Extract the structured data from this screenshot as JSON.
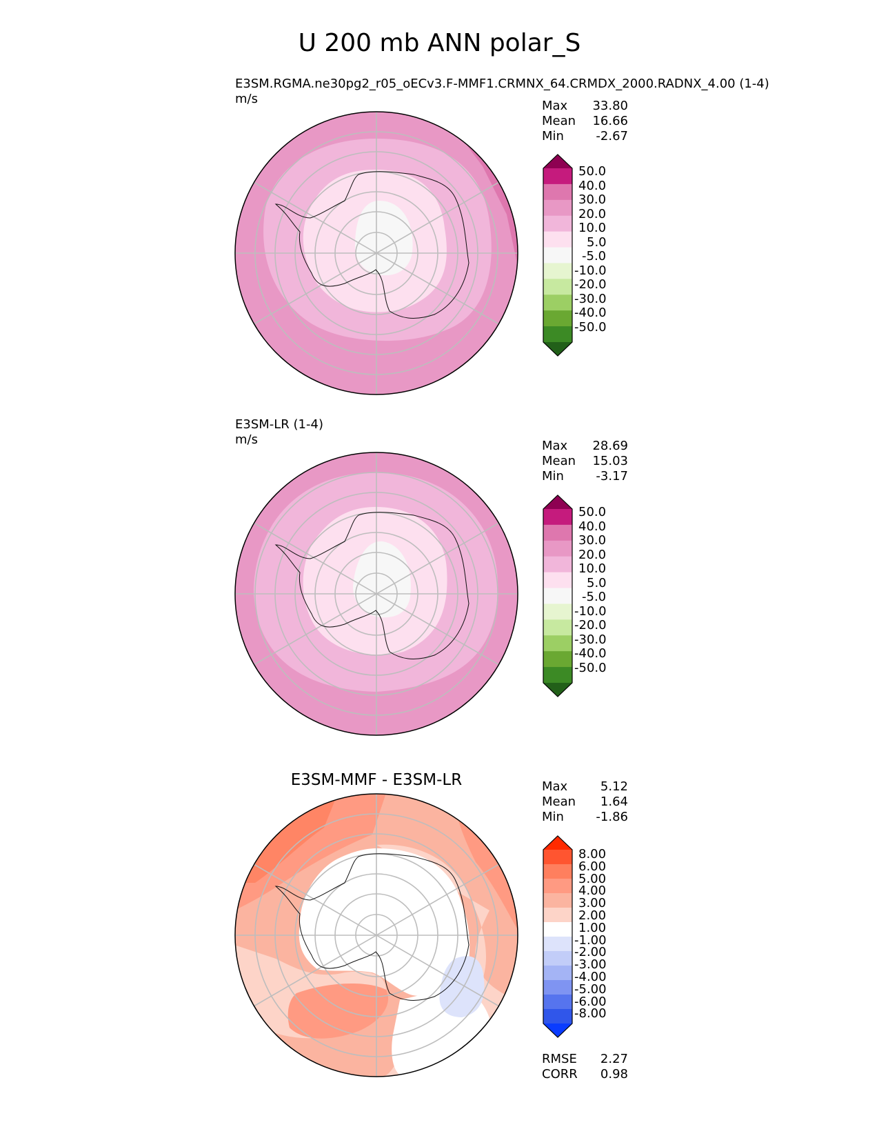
{
  "title": "U 200 mb ANN polar_S",
  "panels": [
    {
      "id": "test",
      "title_line1": "E3SM.RGMA.ne30pg2_r05_oECv3.F-MMF1.CRMNX_64.CRMDX_2000.RADNX_4.00 (1-4)",
      "title_line2": "m/s",
      "stats": {
        "max_label": "Max",
        "max": "33.80",
        "mean_label": "Mean",
        "mean": "16.66",
        "min_label": "Min",
        "min": "-2.67"
      }
    },
    {
      "id": "ref",
      "title_line1": "E3SM-LR (1-4)",
      "title_line2": "m/s",
      "stats": {
        "max_label": "Max",
        "max": "28.69",
        "mean_label": "Mean",
        "mean": "15.03",
        "min_label": "Min",
        "min": "-3.17"
      }
    },
    {
      "id": "diff",
      "title_line1": "E3SM-MMF - E3SM-LR",
      "stats": {
        "max_label": "Max",
        "max": "5.12",
        "mean_label": "Mean",
        "mean": "1.64",
        "min_label": "Min",
        "min": "-1.86"
      },
      "metrics": {
        "rmse_label": "RMSE",
        "rmse": "2.27",
        "corr_label": "CORR",
        "corr": "0.98"
      }
    }
  ],
  "colorbar_main": {
    "labels": [
      "50.0",
      "40.0",
      "30.0",
      "20.0",
      "10.0",
      "5.0",
      "-5.0",
      "-10.0",
      "-20.0",
      "-30.0",
      "-40.0",
      "-50.0"
    ],
    "colors": [
      "#8e0152",
      "#c51b7d",
      "#de77ae",
      "#e898c5",
      "#f1b6da",
      "#fde0ef",
      "#f7f7f7",
      "#e6f5d0",
      "#c7e9a0",
      "#9ccf64",
      "#6aa832",
      "#3c8a25",
      "#226019"
    ]
  },
  "colorbar_diff": {
    "labels": [
      "8.00",
      "6.00",
      "5.00",
      "4.00",
      "3.00",
      "2.00",
      "1.00",
      "-1.00",
      "-2.00",
      "-3.00",
      "-4.00",
      "-5.00",
      "-6.00",
      "-8.00"
    ],
    "colors": [
      "#ff2a00",
      "#ff5530",
      "#ff7f5e",
      "#ff9a82",
      "#fbb4a0",
      "#fdd4c8",
      "#ffffff",
      "#dde3fb",
      "#c2cdf8",
      "#a4b4f5",
      "#7f94f2",
      "#5674ee",
      "#3056ea",
      "#0a3cff"
    ]
  },
  "chart_data": [
    {
      "type": "heatmap",
      "title": "E3SM.RGMA.ne30pg2_r05_oECv3.F-MMF1.CRMNX_64.CRMDX_2000.RADNX_4.00 (1-4)",
      "units": "m/s",
      "projection": "south polar stereographic",
      "levels": [
        -50,
        -40,
        -30,
        -20,
        -10,
        -5,
        5,
        10,
        20,
        30,
        40,
        50
      ],
      "max": 33.8,
      "mean": 16.66,
      "min": -2.67
    },
    {
      "type": "heatmap",
      "title": "E3SM-LR (1-4)",
      "units": "m/s",
      "projection": "south polar stereographic",
      "levels": [
        -50,
        -40,
        -30,
        -20,
        -10,
        -5,
        5,
        10,
        20,
        30,
        40,
        50
      ],
      "max": 28.69,
      "mean": 15.03,
      "min": -3.17
    },
    {
      "type": "heatmap",
      "title": "E3SM-MMF - E3SM-LR",
      "projection": "south polar stereographic",
      "levels": [
        -8,
        -6,
        -5,
        -4,
        -3,
        -2,
        -1,
        1,
        2,
        3,
        4,
        5,
        6,
        8
      ],
      "max": 5.12,
      "mean": 1.64,
      "min": -1.86,
      "rmse": 2.27,
      "corr": 0.98
    }
  ]
}
